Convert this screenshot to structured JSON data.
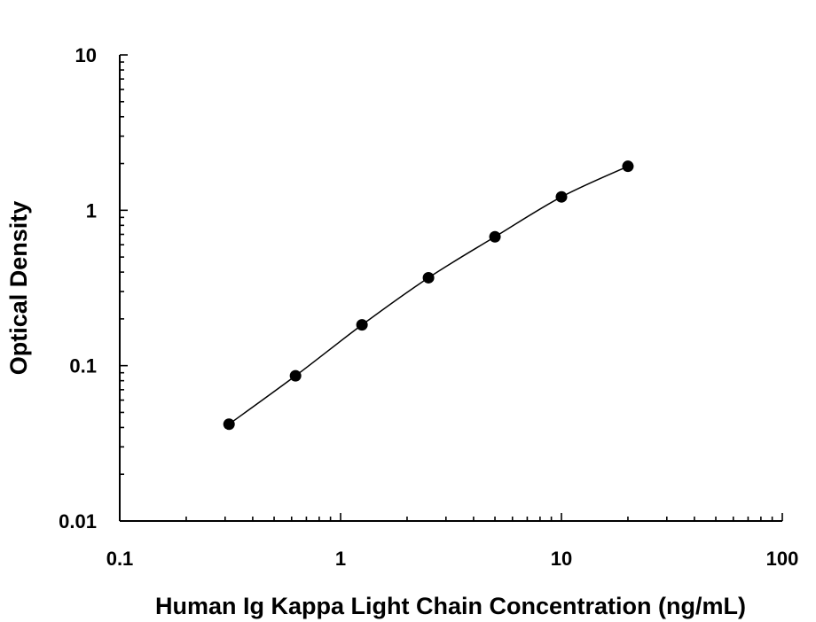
{
  "chart_data": {
    "type": "scatter",
    "title": "",
    "xlabel": "Human Ig Kappa Light Chain Concentration (ng/mL)",
    "ylabel": "Optical Density",
    "x_scale": "log",
    "y_scale": "log",
    "xlim": [
      0.1,
      100
    ],
    "ylim": [
      0.01,
      10
    ],
    "x_ticks": [
      "0.1",
      "1",
      "10",
      "100"
    ],
    "y_ticks": [
      "0.01",
      "0.1",
      "1",
      "10"
    ],
    "grid": false,
    "legend": "none",
    "fit_curve": true,
    "series": [
      {
        "x": [
          0.3125,
          0.625,
          1.25,
          2.5,
          5,
          10,
          20
        ],
        "y": [
          0.042,
          0.086,
          0.183,
          0.368,
          0.675,
          1.22,
          1.92
        ]
      }
    ]
  }
}
